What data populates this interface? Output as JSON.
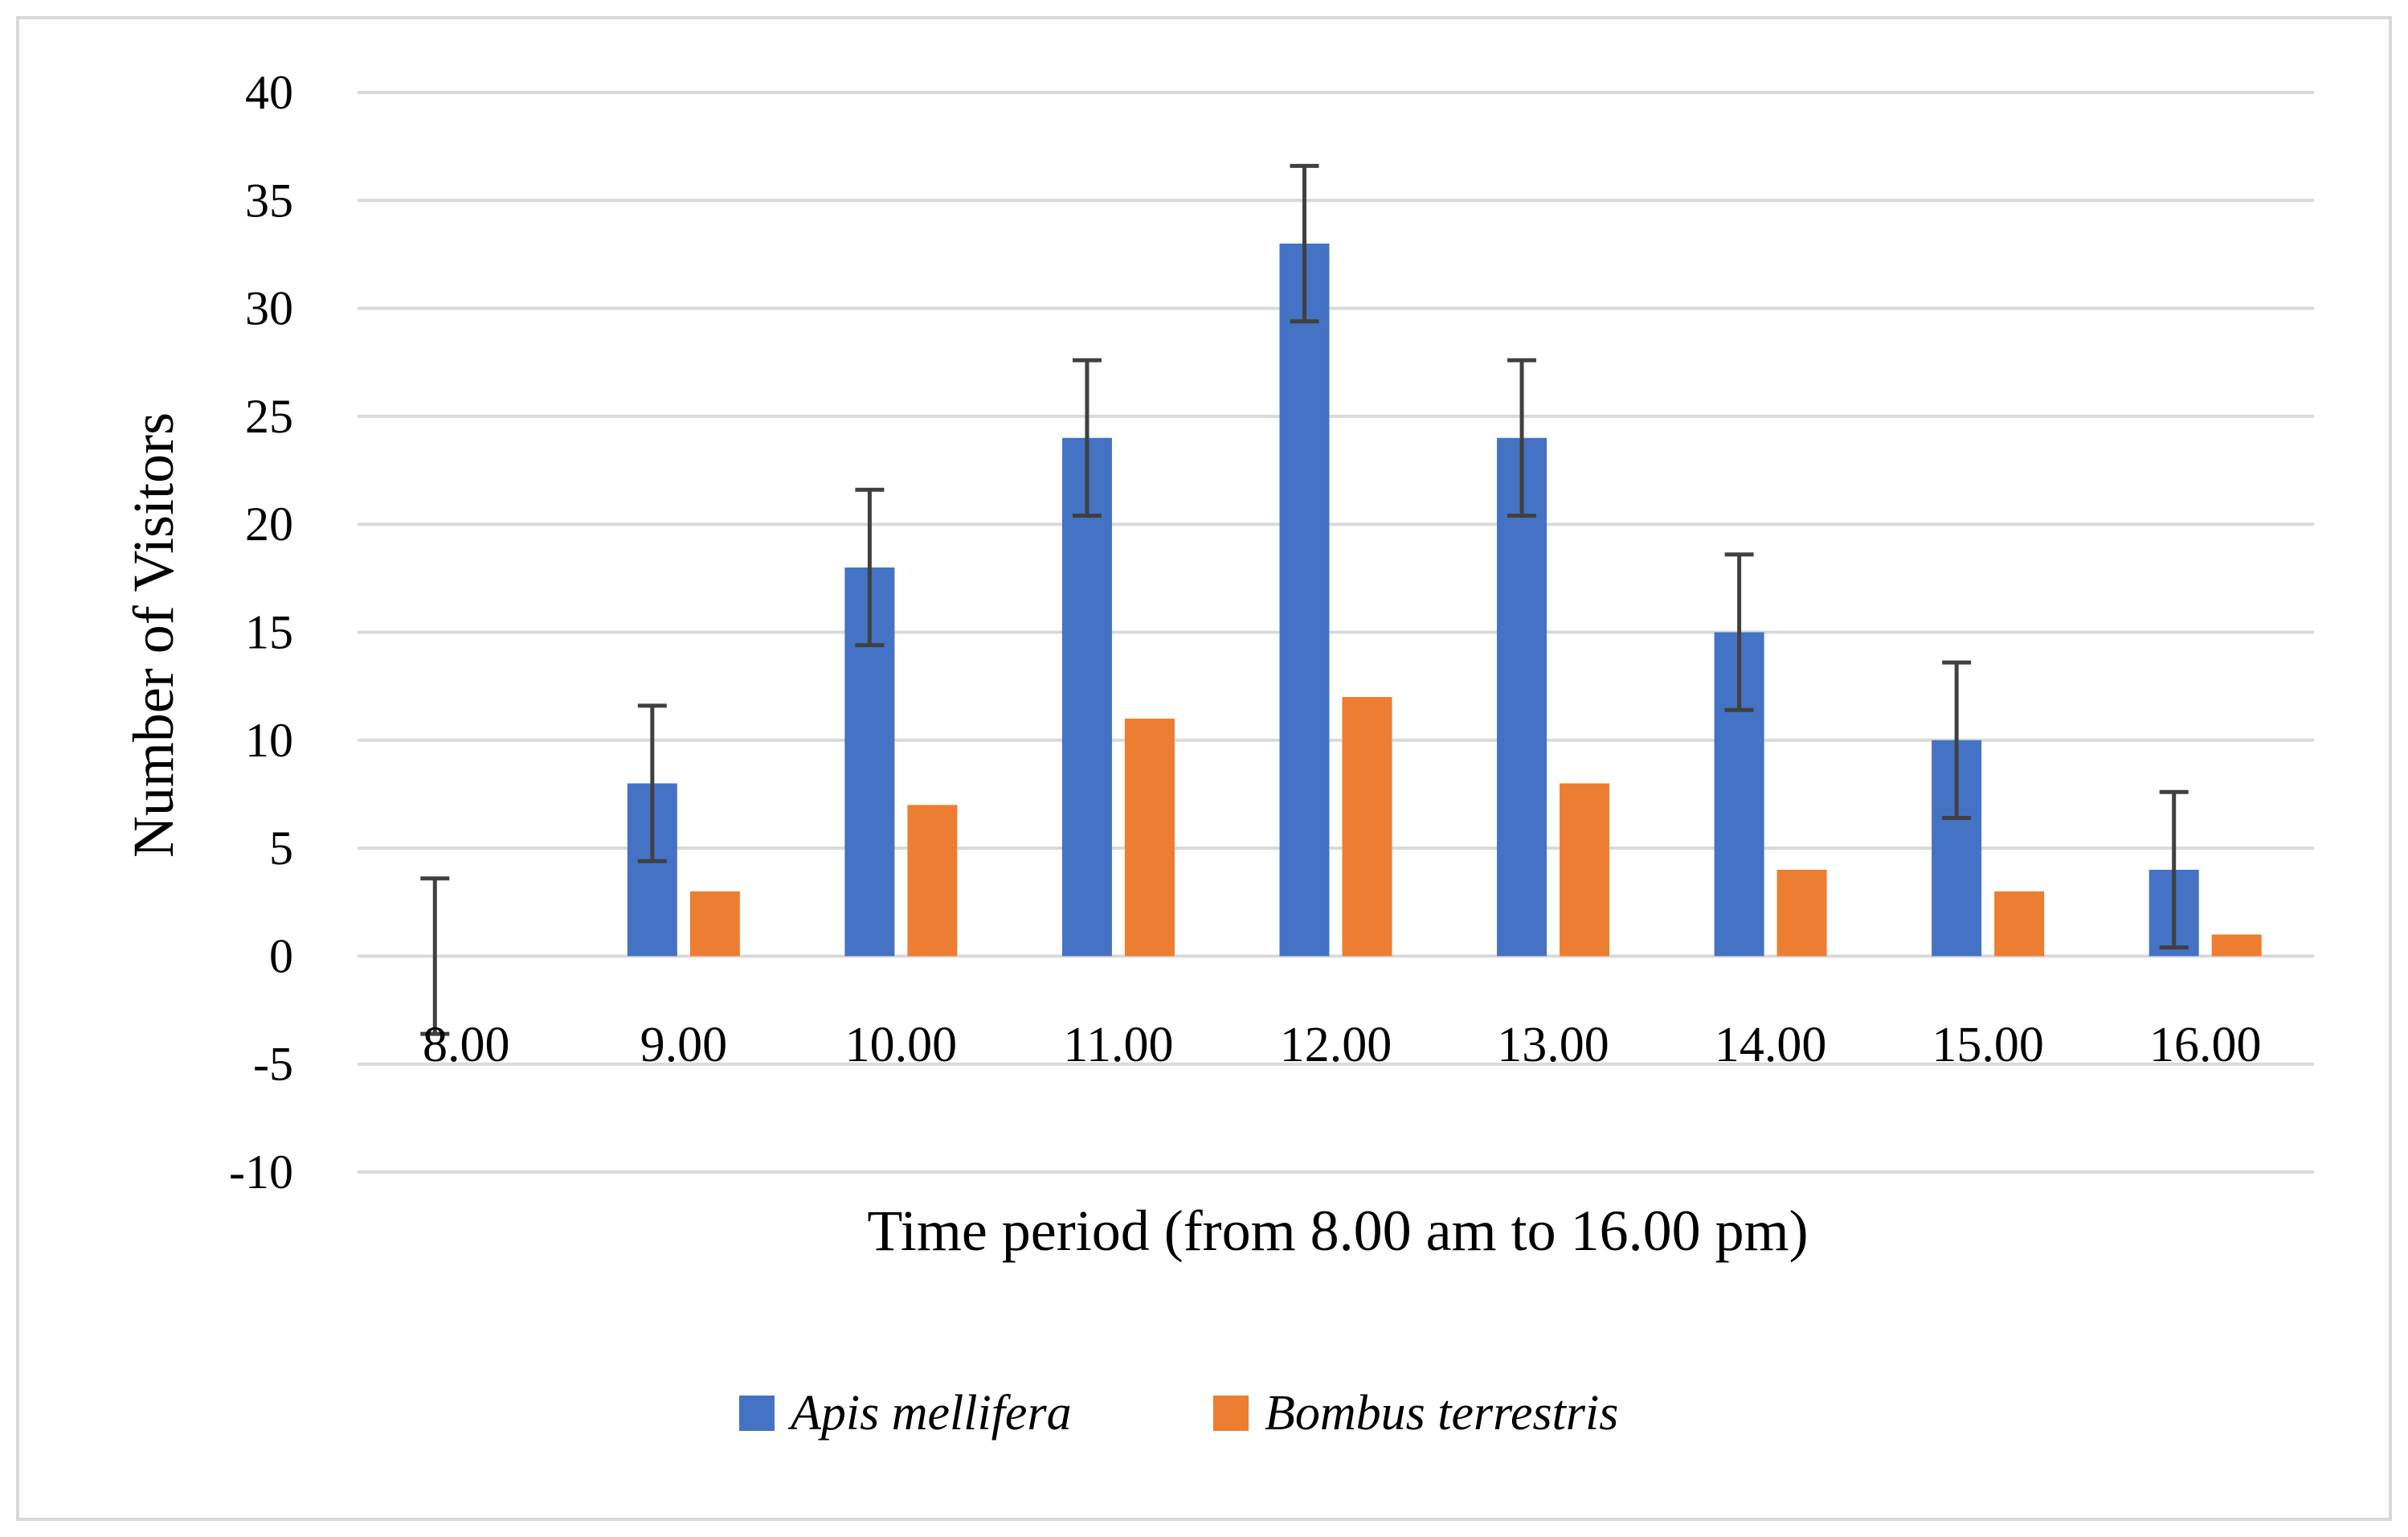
{
  "chart_data": {
    "type": "bar",
    "title": "",
    "xlabel": "Time period (from 8.00 am to 16.00 pm)",
    "ylabel": "Number of Visitors",
    "categories": [
      "8.00",
      "9.00",
      "10.00",
      "11.00",
      "12.00",
      "13.00",
      "14.00",
      "15.00",
      "16.00"
    ],
    "ylim": [
      -10,
      40
    ],
    "yticks": [
      -10,
      -5,
      0,
      5,
      10,
      15,
      20,
      25,
      30,
      35,
      40
    ],
    "grid": true,
    "legend_position": "bottom",
    "error_bar_half_width": 3.6,
    "series": [
      {
        "name": "Apis mellifera",
        "color": "#4472C4",
        "values": [
          0,
          8,
          18,
          24,
          33,
          24,
          15,
          10,
          4
        ],
        "error_bars": true
      },
      {
        "name": "Bombus terrestris",
        "color": "#ED7D31",
        "values": [
          0,
          3,
          7,
          11,
          12,
          8,
          4,
          3,
          1
        ],
        "error_bars": false
      }
    ]
  }
}
